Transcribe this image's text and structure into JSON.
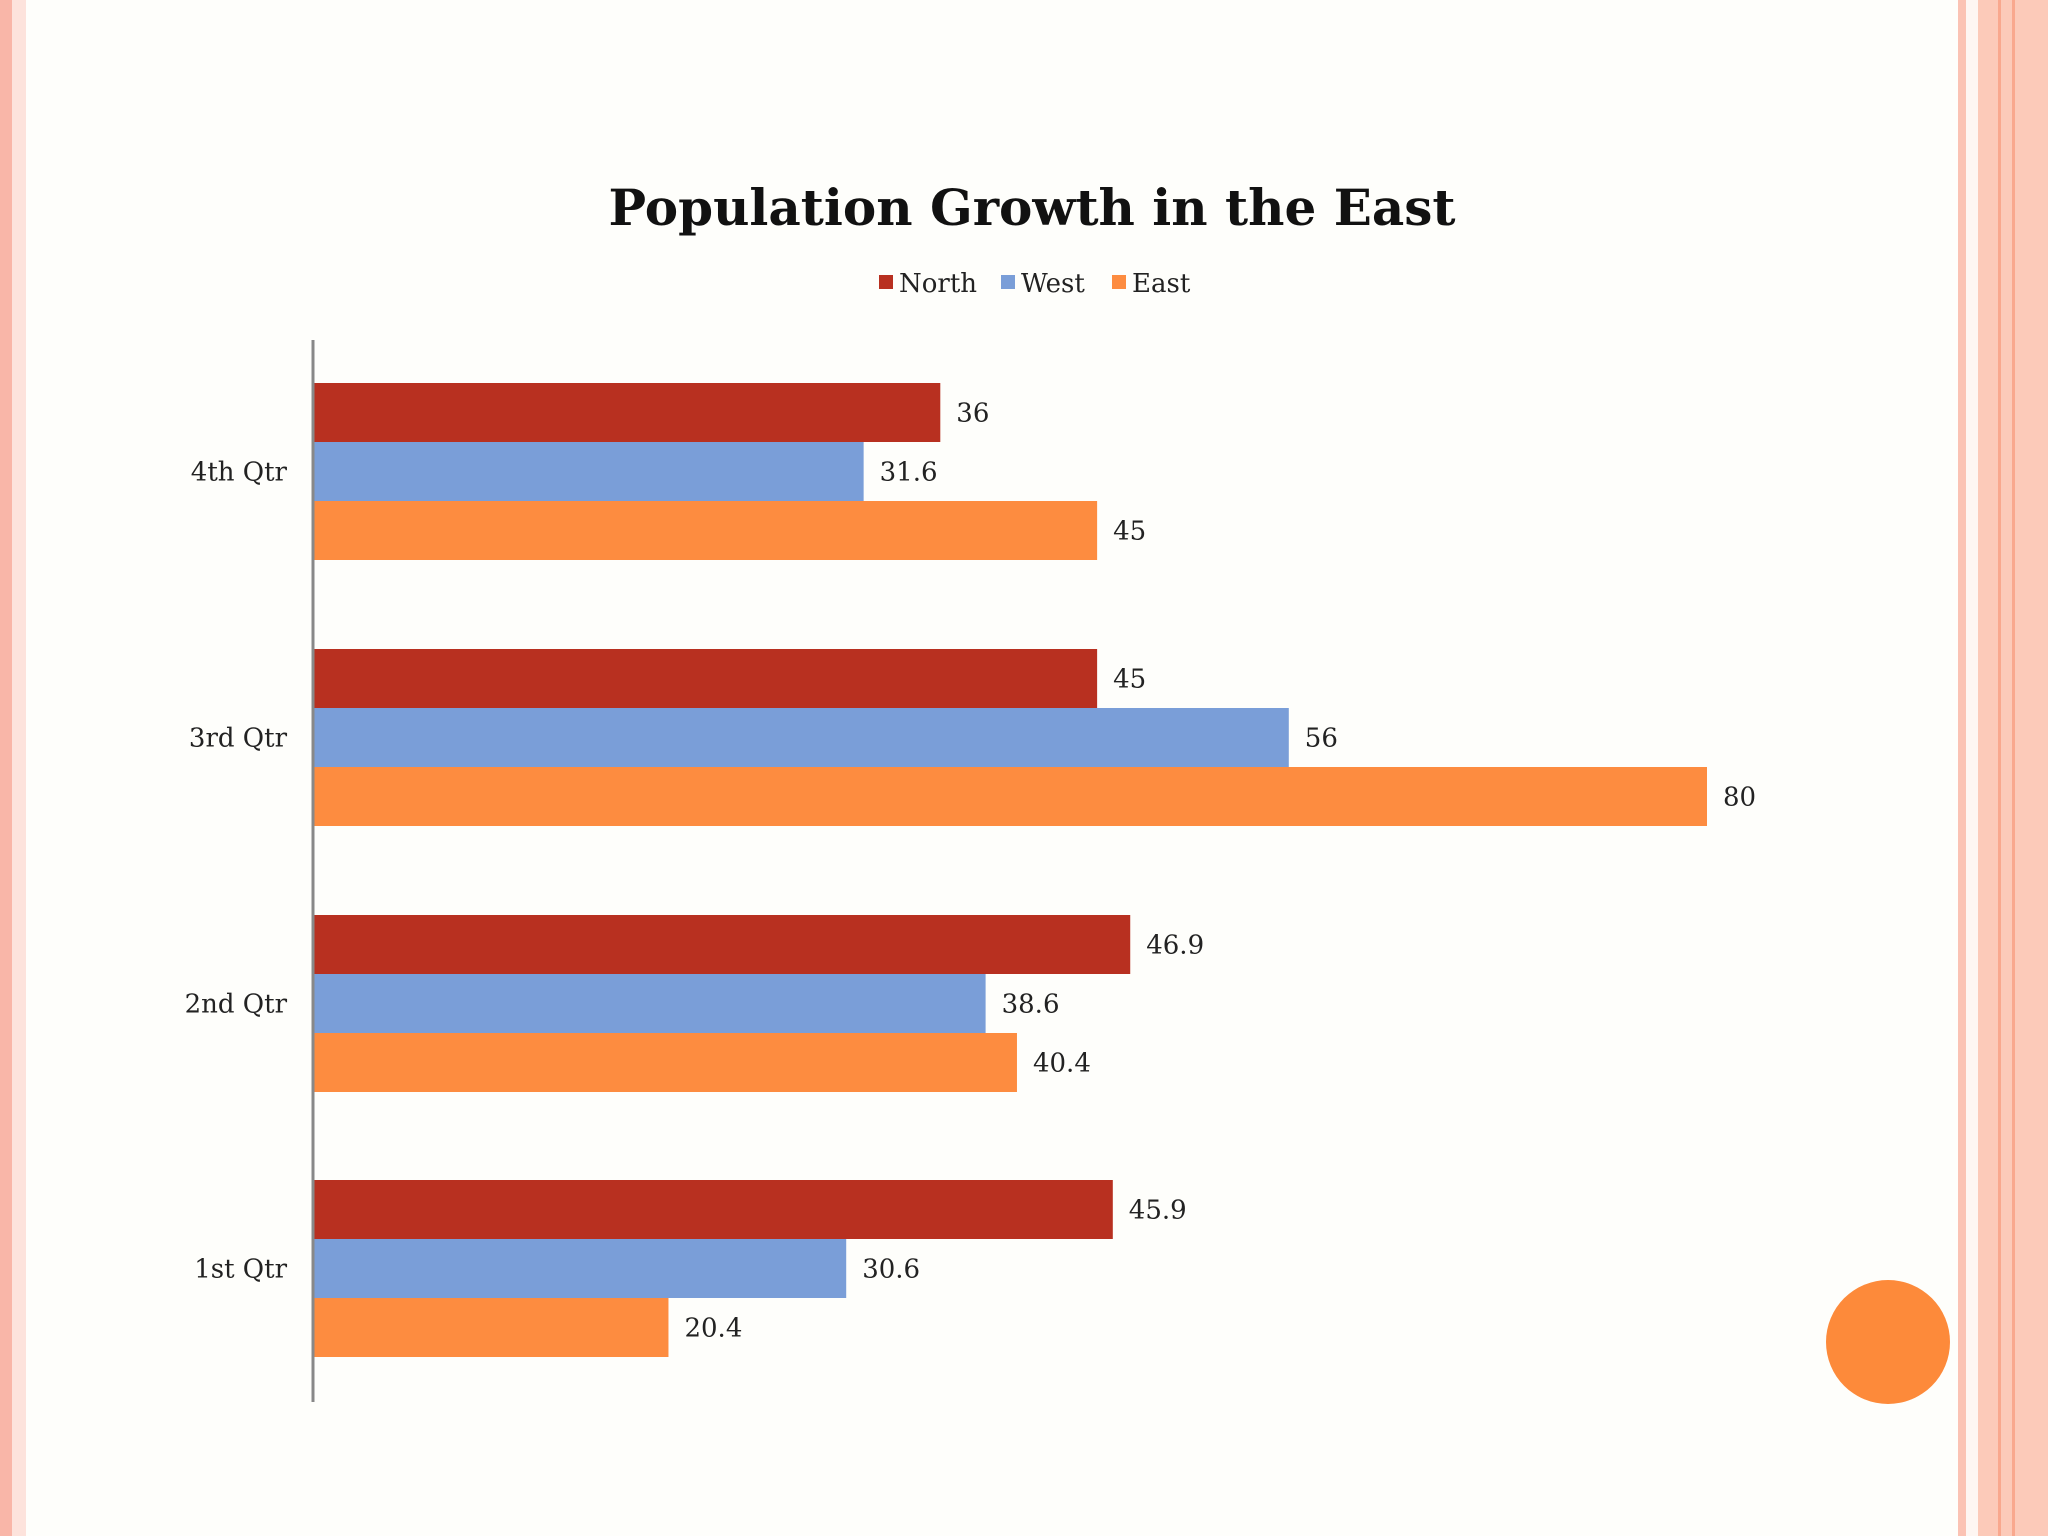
{
  "colors": {
    "north": "#b83020",
    "west": "#7a9ed8",
    "east": "#fd8c40",
    "accent_dot": "#fd8a3a"
  },
  "chart_data": {
    "type": "bar",
    "orientation": "horizontal",
    "title": "Population Growth in the East",
    "categories": [
      "1st Qtr",
      "2nd Qtr",
      "3rd Qtr",
      "4th Qtr"
    ],
    "series": [
      {
        "name": "North",
        "values": [
          45.9,
          46.9,
          45,
          36
        ]
      },
      {
        "name": "West",
        "values": [
          30.6,
          38.6,
          56,
          31.6
        ]
      },
      {
        "name": "East",
        "values": [
          20.4,
          40.4,
          80,
          45
        ]
      }
    ],
    "value_labels": {
      "North": [
        "45.9",
        "46.9",
        "45",
        "36"
      ],
      "West": [
        "30.6",
        "38.6",
        "56",
        "31.6"
      ],
      "East": [
        "20.4",
        "40.4",
        "80",
        "45"
      ]
    },
    "xlim": [
      0,
      80
    ],
    "grid": false,
    "legend_position": "top"
  }
}
